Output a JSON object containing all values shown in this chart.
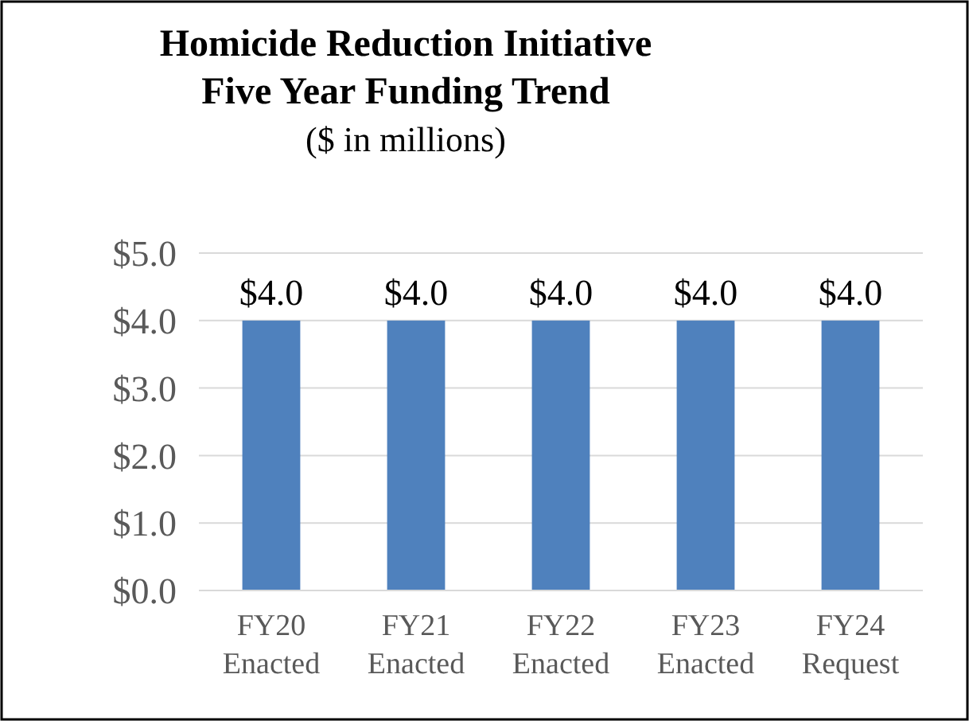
{
  "chart_data": {
    "type": "bar",
    "title": "Homicide Reduction Initiative\nFive Year Funding Trend",
    "subtitle": "($ in millions)",
    "categories": [
      "FY20 Enacted",
      "FY21 Enacted",
      "FY22 Enacted",
      "FY23 Enacted",
      "FY24 Request"
    ],
    "values": [
      4.0,
      4.0,
      4.0,
      4.0,
      4.0
    ],
    "color": "#4f81bd",
    "value_labels": [
      "$4.0",
      "$4.0",
      "$4.0",
      "$4.0",
      "$4.0"
    ],
    "ylim": [
      0,
      5
    ],
    "yticks": [
      {
        "value": 0,
        "label": "$0.0"
      },
      {
        "value": 1,
        "label": "$1.0"
      },
      {
        "value": 2,
        "label": "$2.0"
      },
      {
        "value": 3,
        "label": "$3.0"
      },
      {
        "value": 4,
        "label": "$4.0"
      },
      {
        "value": 5,
        "label": "$5.0"
      }
    ],
    "grid": "y"
  }
}
